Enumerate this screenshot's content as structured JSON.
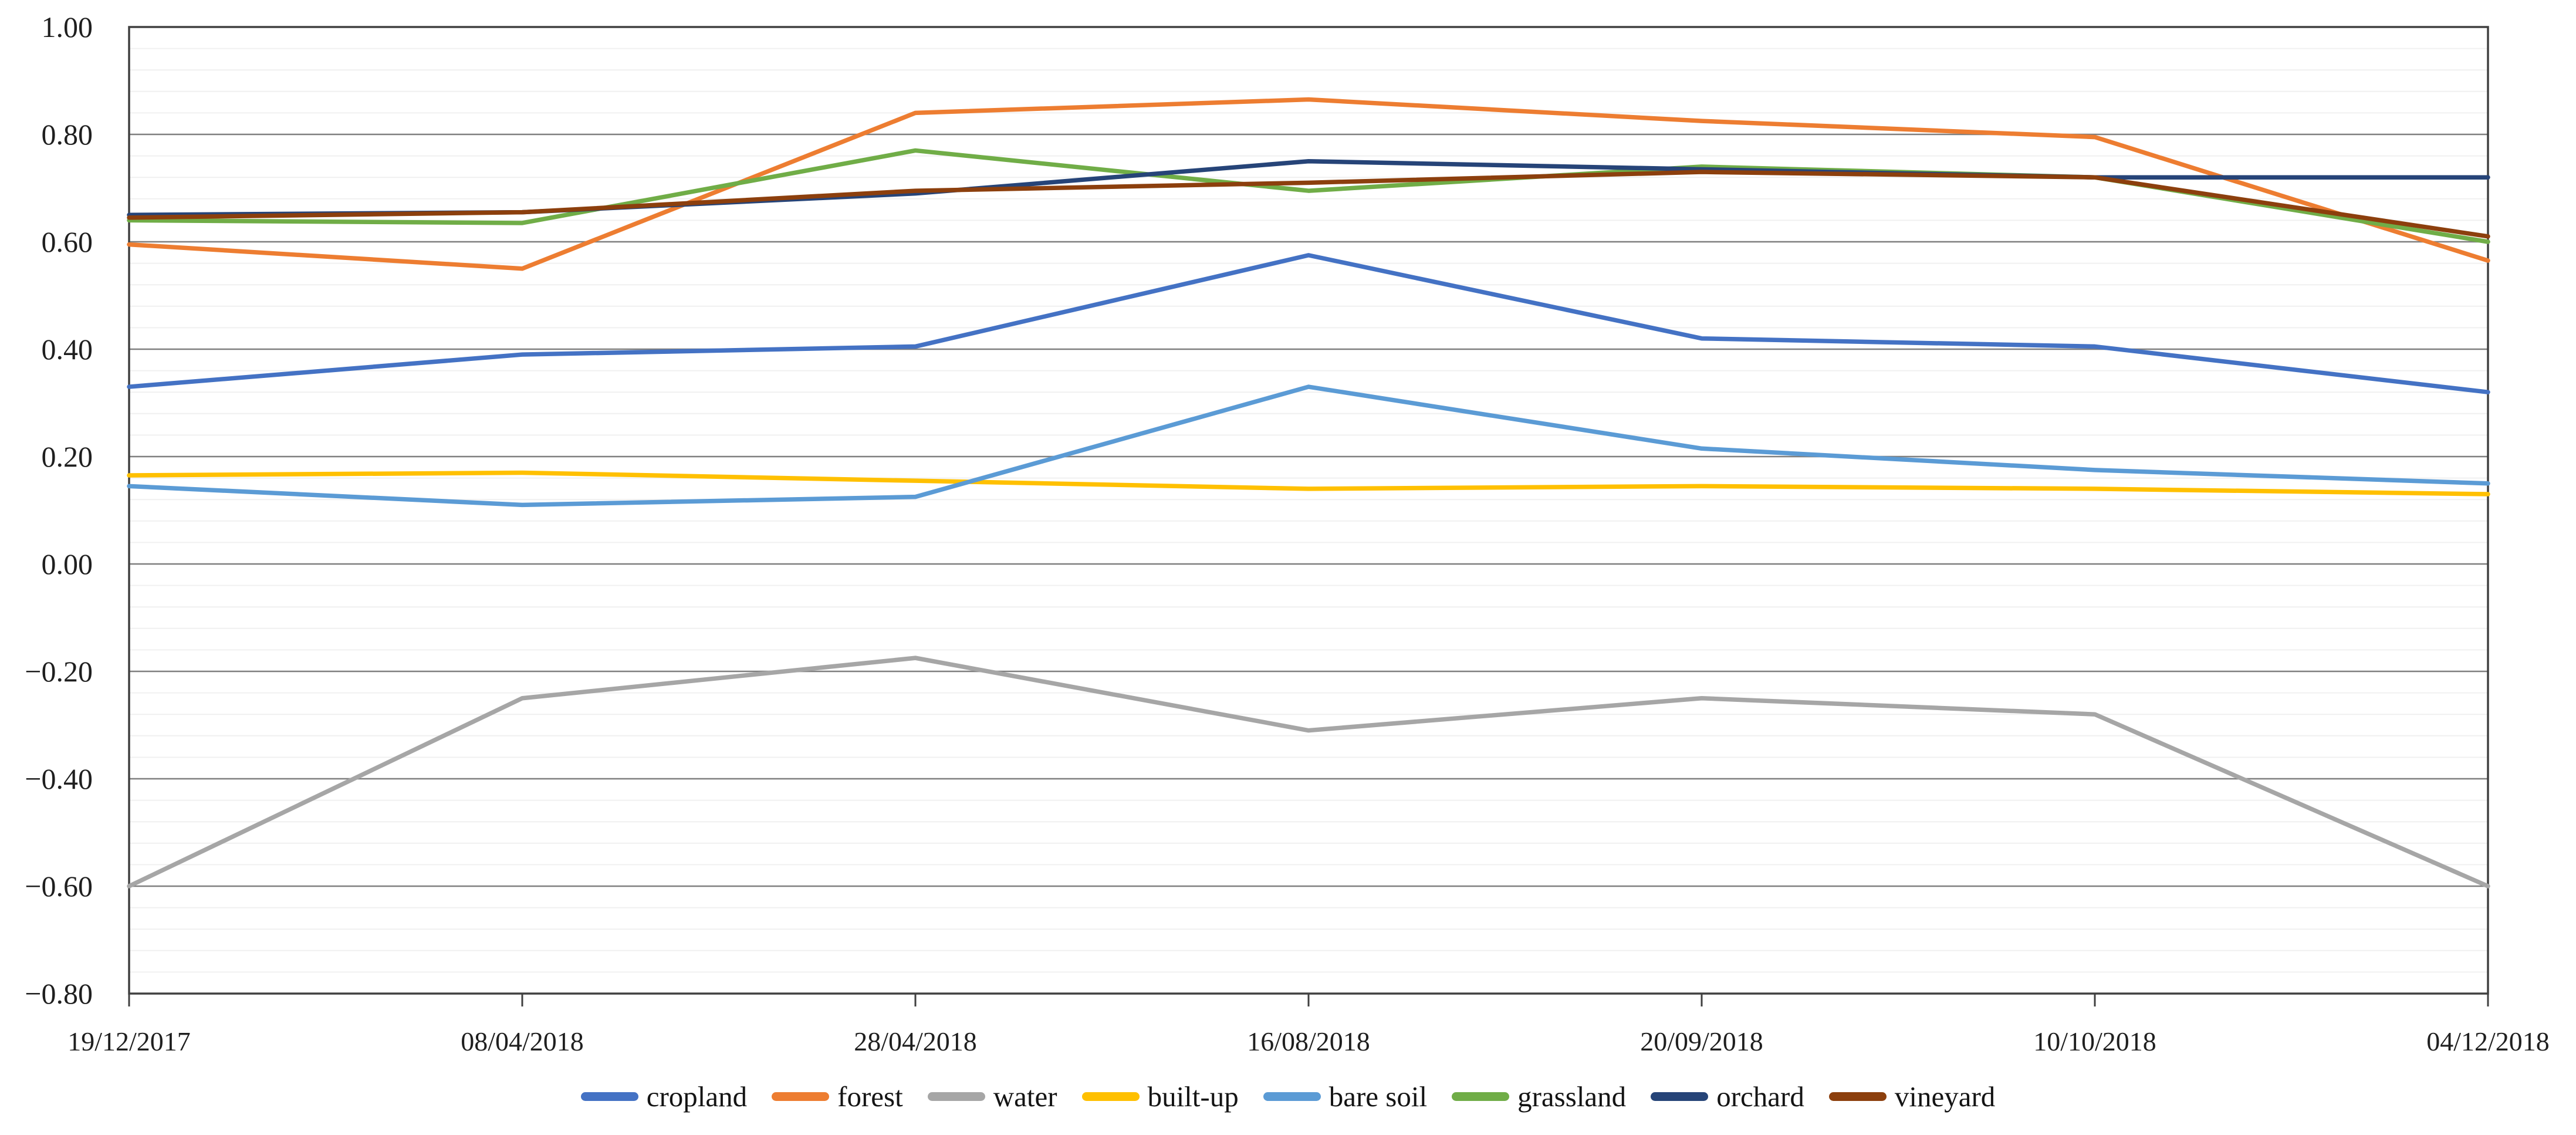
{
  "figure": {
    "description": "NDVI time-series line chart per land-cover class",
    "background": "#ffffff"
  },
  "chart_data": {
    "type": "line",
    "x_categories": [
      "19/12/2017",
      "08/04/2018",
      "28/04/2018",
      "16/08/2018",
      "20/09/2018",
      "10/10/2018",
      "04/12/2018"
    ],
    "series": [
      {
        "name": "cropland",
        "color": "#4472C4",
        "values": [
          0.33,
          0.39,
          0.405,
          0.575,
          0.42,
          0.405,
          0.32
        ]
      },
      {
        "name": "forest",
        "color": "#ED7D31",
        "values": [
          0.595,
          0.55,
          0.84,
          0.865,
          0.825,
          0.795,
          0.565
        ]
      },
      {
        "name": "water",
        "color": "#A6A6A6",
        "values": [
          -0.6,
          -0.25,
          -0.175,
          -0.31,
          -0.25,
          -0.28,
          -0.6
        ]
      },
      {
        "name": "built-up",
        "color": "#FFC000",
        "values": [
          0.165,
          0.17,
          0.155,
          0.14,
          0.145,
          0.14,
          0.13
        ]
      },
      {
        "name": "bare soil",
        "color": "#5B9BD5",
        "values": [
          0.145,
          0.11,
          0.125,
          0.33,
          0.215,
          0.175,
          0.15
        ]
      },
      {
        "name": "grassland",
        "color": "#70AD47",
        "values": [
          0.64,
          0.635,
          0.77,
          0.695,
          0.74,
          0.72,
          0.6
        ]
      },
      {
        "name": "orchard",
        "color": "#264478",
        "values": [
          0.65,
          0.655,
          0.69,
          0.75,
          0.735,
          0.72,
          0.72
        ]
      },
      {
        "name": "vineyard",
        "color": "#8C3F0D",
        "values": [
          0.645,
          0.655,
          0.695,
          0.71,
          0.73,
          0.72,
          0.61
        ]
      }
    ],
    "ylim": [
      -0.8,
      1.0
    ],
    "y_major_step": 0.2,
    "y_minor_step": 0.04,
    "y_tick_labels": [
      "1.00",
      "0.80",
      "0.60",
      "0.40",
      "0.20",
      "0.00",
      "−0.20",
      "−0.40",
      "−0.60",
      "−0.80"
    ],
    "grid": "major dark, minor faint",
    "legend_position": "bottom",
    "styles": {
      "major_grid_color": "#7F7F7F",
      "minor_grid_color": "#F0F0F0",
      "border_color": "#404040",
      "tick_color": "#404040",
      "label_color": "#1f1f1f",
      "series_stroke_width": 7.5
    }
  }
}
